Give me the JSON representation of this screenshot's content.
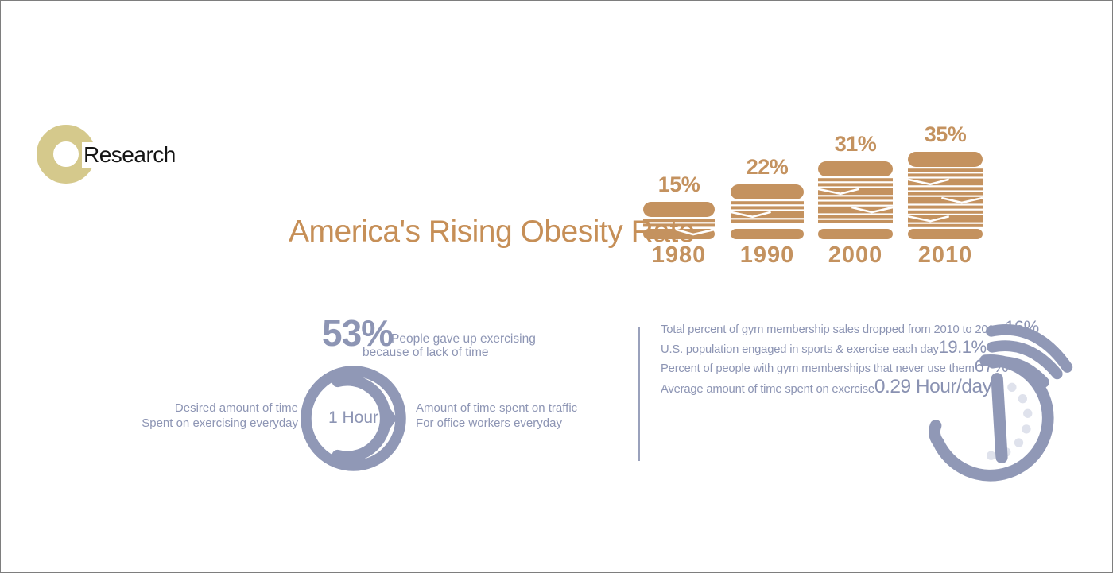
{
  "logo": {
    "text": "Research"
  },
  "title": "America's Rising Obesity Rate",
  "chart_data": {
    "type": "pictogram-bar",
    "title": "America's Rising Obesity Rate",
    "categories": [
      "1980",
      "1990",
      "2000",
      "2010"
    ],
    "values": [
      15,
      22,
      31,
      35
    ],
    "unit": "%",
    "icon": "hamburger-icon",
    "legend_position": "none",
    "grid": false
  },
  "exercise": {
    "stat_value": "53%",
    "caption_line1": "People gave up exercising",
    "caption_line2": "because of lack of time",
    "ring_center_label": "1 Hour",
    "left_label_line1": "Desired amount of time",
    "left_label_line2": "Spent on exercising everyday",
    "right_label_line1": "Amount of time spent on traffic",
    "right_label_line2": "For office workers everyday"
  },
  "stats": {
    "rows": [
      {
        "label": "Total percent of gym membership sales dropped from 2010 to 2011",
        "value": "-16%"
      },
      {
        "label": "U.S. population engaged in sports & exercise each day",
        "value": "19.1%"
      },
      {
        "label": "Percent of people with gym memberships that never use them",
        "value": "67%"
      },
      {
        "label": "Average amount of  time spent on exercise",
        "value": "0.29 Hour/day"
      }
    ]
  },
  "colors": {
    "tan": "#c4925f",
    "title_tan": "#c68f57",
    "khaki": "#d5c98c",
    "gray_blue": "#9098b6",
    "gray_blue_text": "#8d95b4",
    "dot_gray": "#dfe2ec",
    "border_gray": "#7e7e7e"
  }
}
